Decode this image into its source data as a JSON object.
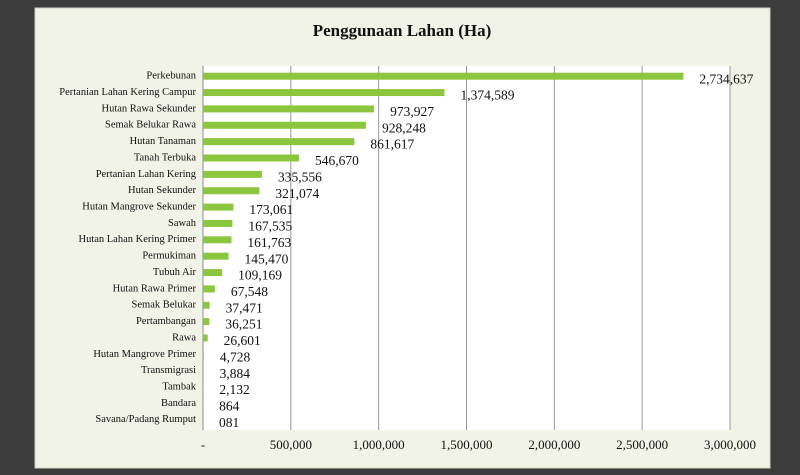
{
  "chart_data": {
    "type": "bar",
    "orientation": "horizontal",
    "title": "Penggunaan Lahan (Ha)",
    "categories": [
      "Perkebunan",
      "Pertanian Lahan Kering Campur",
      "Hutan Rawa Sekunder",
      "Semak Belukar Rawa",
      "Hutan Tanaman",
      "Tanah Terbuka",
      "Pertanian Lahan Kering",
      "Hutan Sekunder",
      "Hutan Mangrove Sekunder",
      "Sawah",
      "Hutan Lahan Kering Primer",
      "Permukiman",
      "Tubuh Air",
      "Hutan Rawa Primer",
      "Semak Belukar",
      "Pertambangan",
      "Rawa",
      "Hutan Mangrove Primer",
      "Transmigrasi",
      "Tambak",
      "Bandara",
      "Savana/Padang Rumput"
    ],
    "values": [
      2734637,
      1374589,
      973927,
      928248,
      861617,
      546670,
      335556,
      321074,
      173061,
      167535,
      161763,
      145470,
      109169,
      67548,
      37471,
      36251,
      26601,
      4728,
      3884,
      2132,
      864,
      81
    ],
    "value_labels": [
      "2,734,637",
      "1,374,589",
      "973,927",
      "928,248",
      "861,617",
      "546,670",
      "335,556",
      "321,074",
      "173,061",
      "167,535",
      "161,763",
      "145,470",
      "109,169",
      "67,548",
      "37,471",
      "36,251",
      "26,601",
      "4,728",
      "3,884",
      "2,132",
      "864",
      "081"
    ],
    "color": "#8cc63e",
    "xlim": [
      0,
      3000000
    ],
    "xticks": [
      {
        "value": 0,
        "label": "-"
      },
      {
        "value": 500000,
        "label": "500,000"
      },
      {
        "value": 1000000,
        "label": "1,000,000"
      },
      {
        "value": 1500000,
        "label": "1,500,000"
      },
      {
        "value": 2000000,
        "label": "2,000,000"
      },
      {
        "value": 2500000,
        "label": "2,500,000"
      },
      {
        "value": 3000000,
        "label": "3,000,000"
      }
    ],
    "grid": true
  }
}
